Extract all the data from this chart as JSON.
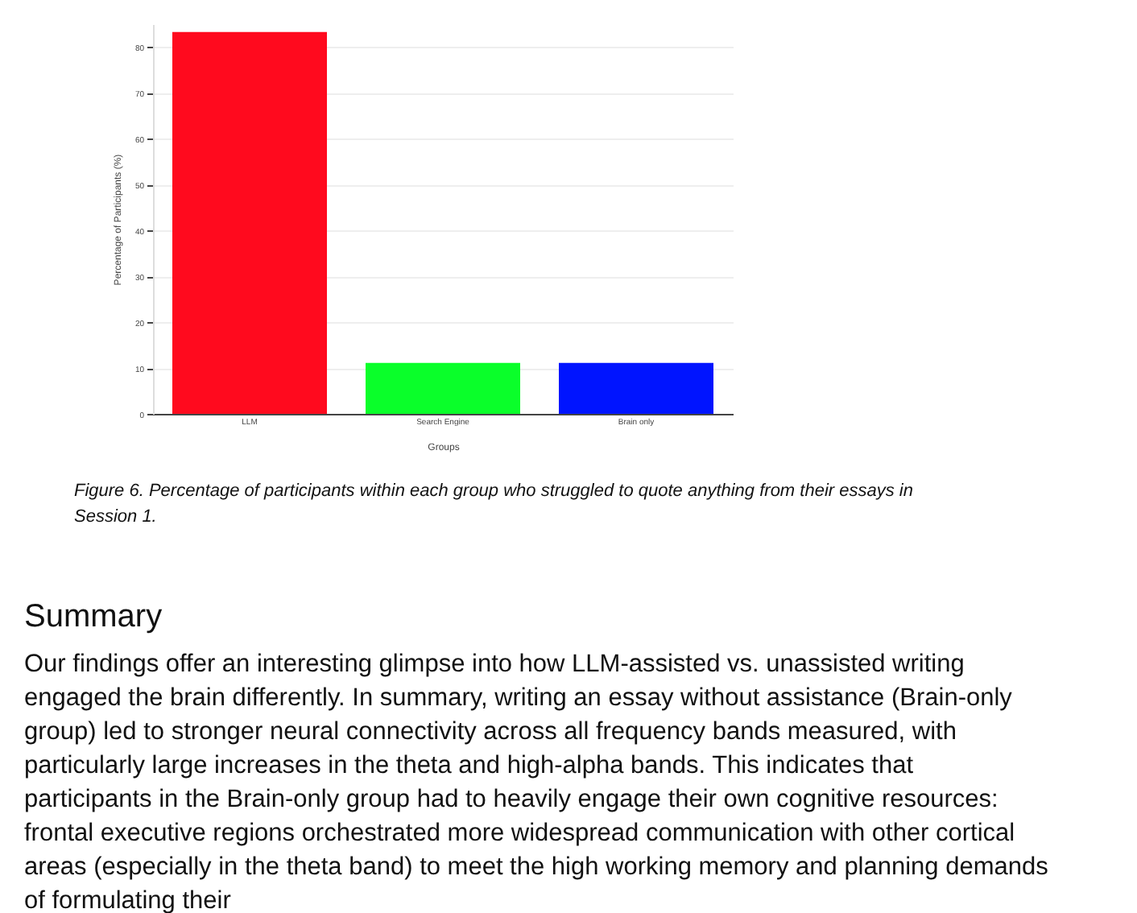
{
  "chart_data": {
    "type": "bar",
    "xlabel": "Groups",
    "ylabel": "Percentage of Participants (%)",
    "categories": [
      "LLM",
      "Search Engine",
      "Brain only"
    ],
    "values": [
      83.3,
      11.1,
      11.1
    ],
    "colors": [
      "#ff0a1e",
      "#0aff2a",
      "#0014ff"
    ],
    "ylim": [
      0,
      85
    ],
    "yticks": [
      0,
      10,
      20,
      30,
      40,
      50,
      60,
      70,
      80
    ],
    "grid": "y",
    "annotations": [
      "Figure 6. Percentage of participants within each group who struggled to quote anything from their essays in Session 1.",
      "Summary",
      "Our findings offer an interesting glimpse into how LLM-assisted vs. unassisted writing engaged the brain differently. In summary, writing an essay without assistance (Brain-only group) led to stronger neural connectivity across all frequency bands measured, with particularly large increases in the theta and high-alpha bands. This indicates that participants in the Brain-only group had to heavily engage their own cognitive resources: frontal executive regions orchestrated more widespread communication with other cortical areas (especially in the theta band) to meet the high working memory and planning demands of formulating their"
    ]
  }
}
